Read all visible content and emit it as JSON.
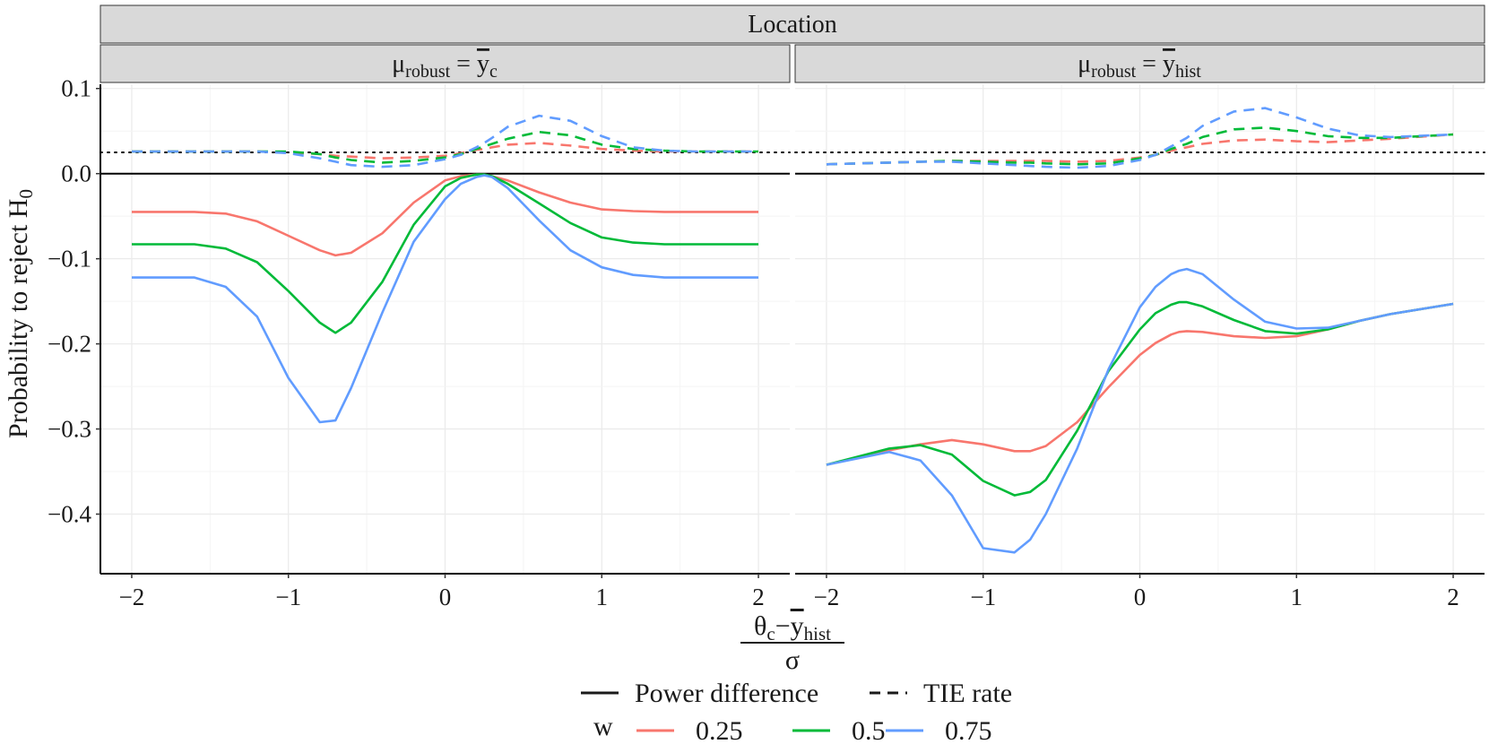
{
  "chart_data": {
    "type": "line",
    "title": "Location",
    "xlabel": {
      "numerator_main": "θ",
      "numerator_sub": "c",
      "minus": "−",
      "ybar": "y",
      "ybar_sub": "hist",
      "denominator": "σ"
    },
    "ylabel": {
      "main": "Probability to reject H",
      "sub": "0"
    },
    "xlim": [
      -2.2,
      2.2
    ],
    "ylim": [
      -0.47,
      0.105
    ],
    "x_ticks": [
      -2,
      -1,
      0,
      1,
      2
    ],
    "x_tick_labels": [
      "−2",
      "−1",
      "0",
      "1",
      "2"
    ],
    "y_ticks": [
      0.1,
      0.0,
      -0.1,
      -0.2,
      -0.3,
      -0.4
    ],
    "y_tick_labels": [
      "0.1",
      "0.0",
      "−0.1",
      "−0.2",
      "−0.3",
      "−0.4"
    ],
    "reference_lines": {
      "zero": 0.0,
      "dotted": 0.025
    },
    "colors": {
      "0.25": "#F8766D",
      "0.5": "#00BA38",
      "0.75": "#619CFF",
      "text": "#1a1a1a",
      "strip": "#d9d9d9",
      "grid": "#ebebeb"
    },
    "x": [
      -2.0,
      -1.6,
      -1.4,
      -1.2,
      -1.0,
      -0.8,
      -0.7,
      -0.6,
      -0.4,
      -0.2,
      0.0,
      0.1,
      0.2,
      0.25,
      0.3,
      0.4,
      0.6,
      0.8,
      1.0,
      1.2,
      1.4,
      1.6,
      2.0
    ],
    "panels": [
      {
        "strip": {
          "mu": "μ",
          "mu_sub": "robust",
          "eq": " = ",
          "ybar": "y",
          "ybar_sub": "c"
        },
        "series": [
          {
            "name": "0.25",
            "kind": "Power difference",
            "values": [
              -0.045,
              -0.045,
              -0.047,
              -0.056,
              -0.073,
              -0.09,
              -0.096,
              -0.093,
              -0.07,
              -0.034,
              -0.008,
              -0.003,
              -0.001,
              -0.001,
              -0.003,
              -0.008,
              -0.022,
              -0.034,
              -0.042,
              -0.044,
              -0.045,
              -0.045,
              -0.045
            ]
          },
          {
            "name": "0.5",
            "kind": "Power difference",
            "values": [
              -0.083,
              -0.083,
              -0.088,
              -0.104,
              -0.138,
              -0.175,
              -0.187,
              -0.175,
              -0.127,
              -0.06,
              -0.015,
              -0.005,
              -0.001,
              -0.001,
              -0.003,
              -0.012,
              -0.035,
              -0.058,
              -0.075,
              -0.081,
              -0.083,
              -0.083,
              -0.083
            ]
          },
          {
            "name": "0.75",
            "kind": "Power difference",
            "values": [
              -0.122,
              -0.122,
              -0.133,
              -0.168,
              -0.24,
              -0.292,
              -0.29,
              -0.252,
              -0.163,
              -0.08,
              -0.03,
              -0.012,
              -0.004,
              -0.002,
              -0.004,
              -0.017,
              -0.055,
              -0.09,
              -0.11,
              -0.119,
              -0.122,
              -0.122,
              -0.122
            ]
          },
          {
            "name": "0.25",
            "kind": "TIE rate",
            "values": [
              0.026,
              0.026,
              0.026,
              0.026,
              0.025,
              0.023,
              0.021,
              0.02,
              0.018,
              0.019,
              0.021,
              0.024,
              0.028,
              0.029,
              0.031,
              0.034,
              0.036,
              0.033,
              0.029,
              0.027,
              0.026,
              0.026,
              0.026
            ]
          },
          {
            "name": "0.5",
            "kind": "TIE rate",
            "values": [
              0.026,
              0.026,
              0.026,
              0.026,
              0.026,
              0.023,
              0.019,
              0.016,
              0.013,
              0.015,
              0.019,
              0.023,
              0.029,
              0.032,
              0.035,
              0.041,
              0.049,
              0.045,
              0.034,
              0.029,
              0.027,
              0.026,
              0.026
            ]
          },
          {
            "name": "0.75",
            "kind": "TIE rate",
            "values": [
              0.026,
              0.026,
              0.026,
              0.026,
              0.024,
              0.018,
              0.014,
              0.01,
              0.008,
              0.01,
              0.017,
              0.022,
              0.031,
              0.036,
              0.042,
              0.055,
              0.068,
              0.062,
              0.044,
              0.031,
              0.027,
              0.026,
              0.026
            ]
          }
        ]
      },
      {
        "strip": {
          "mu": "μ",
          "mu_sub": "robust",
          "eq": " = ",
          "ybar": "y",
          "ybar_sub": "hist"
        },
        "series": [
          {
            "name": "0.25",
            "kind": "Power difference",
            "values": [
              -0.342,
              -0.325,
              -0.318,
              -0.313,
              -0.318,
              -0.326,
              -0.326,
              -0.32,
              -0.292,
              -0.251,
              -0.213,
              -0.199,
              -0.189,
              -0.186,
              -0.185,
              -0.186,
              -0.191,
              -0.193,
              -0.191,
              -0.183,
              -0.173,
              -0.165,
              -0.153
            ]
          },
          {
            "name": "0.5",
            "kind": "Power difference",
            "values": [
              -0.342,
              -0.323,
              -0.319,
              -0.33,
              -0.361,
              -0.378,
              -0.374,
              -0.36,
              -0.302,
              -0.232,
              -0.183,
              -0.164,
              -0.154,
              -0.151,
              -0.151,
              -0.156,
              -0.172,
              -0.185,
              -0.188,
              -0.183,
              -0.173,
              -0.165,
              -0.153
            ]
          },
          {
            "name": "0.75",
            "kind": "Power difference",
            "values": [
              -0.342,
              -0.327,
              -0.337,
              -0.378,
              -0.44,
              -0.445,
              -0.43,
              -0.4,
              -0.323,
              -0.23,
              -0.157,
              -0.133,
              -0.118,
              -0.114,
              -0.112,
              -0.118,
              -0.148,
              -0.174,
              -0.182,
              -0.181,
              -0.173,
              -0.165,
              -0.153
            ]
          },
          {
            "name": "0.25",
            "kind": "TIE rate",
            "values": [
              0.011,
              0.013,
              0.014,
              0.015,
              0.015,
              0.015,
              0.015,
              0.015,
              0.014,
              0.015,
              0.019,
              0.022,
              0.027,
              0.029,
              0.031,
              0.035,
              0.039,
              0.04,
              0.038,
              0.037,
              0.039,
              0.041,
              0.046
            ]
          },
          {
            "name": "0.5",
            "kind": "TIE rate",
            "values": [
              0.011,
              0.013,
              0.014,
              0.015,
              0.014,
              0.013,
              0.013,
              0.012,
              0.011,
              0.012,
              0.018,
              0.022,
              0.029,
              0.032,
              0.035,
              0.043,
              0.052,
              0.054,
              0.05,
              0.044,
              0.042,
              0.042,
              0.046
            ]
          },
          {
            "name": "0.75",
            "kind": "TIE rate",
            "values": [
              0.011,
              0.013,
              0.014,
              0.014,
              0.012,
              0.01,
              0.009,
              0.008,
              0.007,
              0.009,
              0.016,
              0.022,
              0.032,
              0.037,
              0.042,
              0.056,
              0.073,
              0.077,
              0.066,
              0.053,
              0.045,
              0.043,
              0.046
            ]
          }
        ]
      }
    ],
    "legend": {
      "position": "bottom",
      "linetype": [
        {
          "label": "Power difference",
          "style": "solid"
        },
        {
          "label": "TIE rate",
          "style": "dashed"
        }
      ],
      "color_title": "w",
      "color": [
        "0.25",
        "0.5",
        "0.75"
      ]
    }
  }
}
